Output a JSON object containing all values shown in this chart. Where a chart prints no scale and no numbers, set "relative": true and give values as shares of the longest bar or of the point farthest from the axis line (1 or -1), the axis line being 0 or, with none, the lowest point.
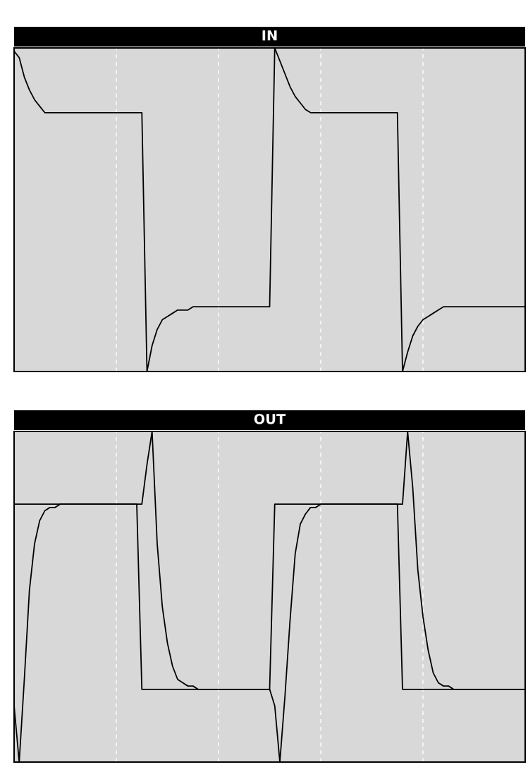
{
  "chart_data": [
    {
      "type": "line",
      "title": "IN",
      "relative": true,
      "tick_labels": false,
      "grid": "x",
      "categories": [
        null,
        null,
        null,
        null,
        null,
        null,
        null,
        null,
        null,
        null,
        null,
        null,
        null,
        null,
        null,
        null,
        null,
        null,
        null,
        null,
        null,
        null,
        null,
        null,
        null,
        null,
        null,
        null,
        null,
        null,
        null,
        null,
        null,
        null,
        null,
        null,
        null,
        null,
        null,
        null,
        null,
        null,
        null,
        null,
        null,
        null,
        null,
        null,
        null,
        null,
        null,
        null,
        null,
        null,
        null,
        null,
        null,
        null,
        null,
        null,
        null,
        null,
        null,
        null,
        null,
        null,
        null,
        null,
        null,
        null,
        null,
        null,
        null,
        null,
        null,
        null,
        null,
        null,
        null,
        null,
        null,
        null,
        null,
        null,
        null,
        null,
        null,
        null,
        null,
        null,
        null,
        null,
        null,
        null,
        null,
        null,
        null,
        null,
        null,
        null,
        null
      ],
      "series": [
        {
          "color": "#000000",
          "values": [
            0.99,
            0.97,
            0.91,
            0.87,
            0.84,
            0.82,
            0.8,
            0.8,
            0.8,
            0.8,
            0.8,
            0.8,
            0.8,
            0.8,
            0.8,
            0.8,
            0.8,
            0.8,
            0.8,
            0.8,
            0.8,
            0.8,
            0.8,
            0.8,
            0.8,
            0.8,
            0,
            0.08,
            0.13,
            0.16,
            0.17,
            0.18,
            0.19,
            0.19,
            0.19,
            0.2,
            0.2,
            0.2,
            0.2,
            0.2,
            0.2,
            0.2,
            0.2,
            0.2,
            0.2,
            0.2,
            0.2,
            0.2,
            0.2,
            0.2,
            0.2,
            1,
            0.96,
            0.92,
            0.88,
            0.85,
            0.83,
            0.81,
            0.8,
            0.8,
            0.8,
            0.8,
            0.8,
            0.8,
            0.8,
            0.8,
            0.8,
            0.8,
            0.8,
            0.8,
            0.8,
            0.8,
            0.8,
            0.8,
            0.8,
            0.8,
            0,
            0.06,
            0.11,
            0.14,
            0.16,
            0.17,
            0.18,
            0.19,
            0.2,
            0.2,
            0.2,
            0.2,
            0.2,
            0.2,
            0.2,
            0.2,
            0.2,
            0.2,
            0.2,
            0.2,
            0.2,
            0.2,
            0.2,
            0.2,
            0.2
          ]
        }
      ]
    },
    {
      "type": "line",
      "title": "OUT",
      "relative": true,
      "tick_labels": false,
      "grid": "x",
      "categories": [
        null,
        null,
        null,
        null,
        null,
        null,
        null,
        null,
        null,
        null,
        null,
        null,
        null,
        null,
        null,
        null,
        null,
        null,
        null,
        null,
        null,
        null,
        null,
        null,
        null,
        null,
        null,
        null,
        null,
        null,
        null,
        null,
        null,
        null,
        null,
        null,
        null,
        null,
        null,
        null,
        null,
        null,
        null,
        null,
        null,
        null,
        null,
        null,
        null,
        null,
        null,
        null,
        null,
        null,
        null,
        null,
        null,
        null,
        null,
        null,
        null,
        null,
        null,
        null,
        null,
        null,
        null,
        null,
        null,
        null,
        null,
        null,
        null,
        null,
        null,
        null,
        null,
        null,
        null,
        null,
        null,
        null,
        null,
        null,
        null,
        null,
        null,
        null,
        null,
        null,
        null,
        null,
        null,
        null,
        null,
        null,
        null,
        null,
        null,
        null,
        null
      ],
      "series": [
        {
          "color": "#000000",
          "values": [
            0.78,
            0.78,
            0.78,
            0.78,
            0.78,
            0.78,
            0.78,
            0.78,
            0.78,
            0.78,
            0.78,
            0.78,
            0.78,
            0.78,
            0.78,
            0.78,
            0.78,
            0.78,
            0.78,
            0.78,
            0.78,
            0.78,
            0.78,
            0.78,
            0.78,
            0.22,
            0.22,
            0.22,
            0.22,
            0.22,
            0.22,
            0.22,
            0.22,
            0.22,
            0.22,
            0.22,
            0.22,
            0.22,
            0.22,
            0.22,
            0.22,
            0.22,
            0.22,
            0.22,
            0.22,
            0.22,
            0.22,
            0.22,
            0.22,
            0.22,
            0.22,
            0.78,
            0.78,
            0.78,
            0.78,
            0.78,
            0.78,
            0.78,
            0.78,
            0.78,
            0.78,
            0.78,
            0.78,
            0.78,
            0.78,
            0.78,
            0.78,
            0.78,
            0.78,
            0.78,
            0.78,
            0.78,
            0.78,
            0.78,
            0.78,
            0.78,
            0.22,
            0.22,
            0.22,
            0.22,
            0.22,
            0.22,
            0.22,
            0.22,
            0.22,
            0.22,
            0.22,
            0.22,
            0.22,
            0.22,
            0.22,
            0.22,
            0.22,
            0.22,
            0.22,
            0.22,
            0.22,
            0.22,
            0.22,
            0.22,
            0.22
          ]
        },
        {
          "color": "#000000",
          "values": [
            0.17,
            0,
            0.25,
            0.52,
            0.66,
            0.73,
            0.76,
            0.77,
            0.77,
            0.78,
            0.78,
            0.78,
            0.78,
            0.78,
            0.78,
            0.78,
            0.78,
            0.78,
            0.78,
            0.78,
            0.78,
            0.78,
            0.78,
            0.78,
            0.78,
            0.78,
            0.9,
            1,
            0.66,
            0.47,
            0.36,
            0.29,
            0.25,
            0.24,
            0.23,
            0.23,
            0.22,
            0.22,
            0.22,
            0.22,
            0.22,
            0.22,
            0.22,
            0.22,
            0.22,
            0.22,
            0.22,
            0.22,
            0.22,
            0.22,
            0.22,
            0.17,
            0,
            0.2,
            0.43,
            0.63,
            0.72,
            0.75,
            0.77,
            0.77,
            0.78,
            0.78,
            0.78,
            0.78,
            0.78,
            0.78,
            0.78,
            0.78,
            0.78,
            0.78,
            0.78,
            0.78,
            0.78,
            0.78,
            0.78,
            0.78,
            0.78,
            1,
            0.83,
            0.58,
            0.44,
            0.34,
            0.27,
            0.24,
            0.23,
            0.23,
            0.22,
            0.22,
            0.22,
            0.22,
            0.22,
            0.22,
            0.22,
            0.22,
            0.22,
            0.22,
            0.22,
            0.22,
            0.22,
            0.22,
            0.22
          ]
        }
      ]
    }
  ]
}
